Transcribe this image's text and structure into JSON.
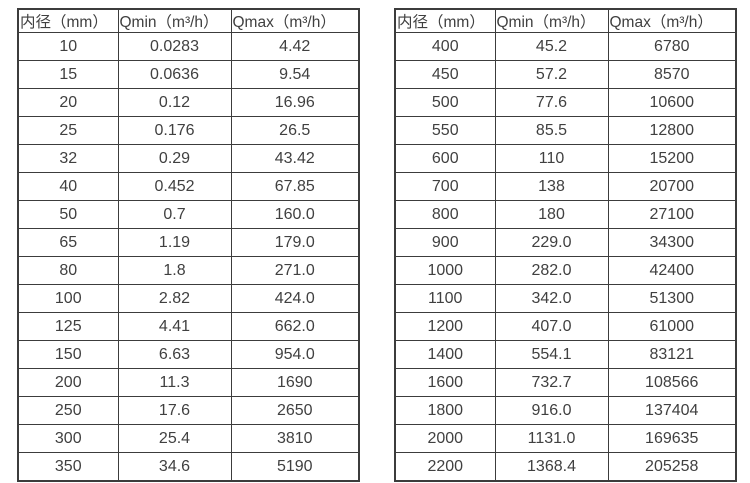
{
  "colors": {
    "border": "#3c3c3c",
    "text": "#404040",
    "background": "#ffffff"
  },
  "tables": [
    {
      "name": "flow-table-small-diameters",
      "headers": [
        "内径（mm）",
        "Qmin（m³/h）",
        "Qmax（m³/h）"
      ],
      "rows": [
        [
          "10",
          "0.0283",
          "4.42"
        ],
        [
          "15",
          "0.0636",
          "9.54"
        ],
        [
          "20",
          "0.12",
          "16.96"
        ],
        [
          "25",
          "0.176",
          "26.5"
        ],
        [
          "32",
          "0.29",
          "43.42"
        ],
        [
          "40",
          "0.452",
          "67.85"
        ],
        [
          "50",
          "0.7",
          "160.0"
        ],
        [
          "65",
          "1.19",
          "179.0"
        ],
        [
          "80",
          "1.8",
          "271.0"
        ],
        [
          "100",
          "2.82",
          "424.0"
        ],
        [
          "125",
          "4.41",
          "662.0"
        ],
        [
          "150",
          "6.63",
          "954.0"
        ],
        [
          "200",
          "11.3",
          "1690"
        ],
        [
          "250",
          "17.6",
          "2650"
        ],
        [
          "300",
          "25.4",
          "3810"
        ],
        [
          "350",
          "34.6",
          "5190"
        ]
      ]
    },
    {
      "name": "flow-table-large-diameters",
      "headers": [
        "内径（mm）",
        "Qmin（m³/h）",
        "Qmax（m³/h）"
      ],
      "rows": [
        [
          "400",
          "45.2",
          "6780"
        ],
        [
          "450",
          "57.2",
          "8570"
        ],
        [
          "500",
          "77.6",
          "10600"
        ],
        [
          "550",
          "85.5",
          "12800"
        ],
        [
          "600",
          "110",
          "15200"
        ],
        [
          "700",
          "138",
          "20700"
        ],
        [
          "800",
          "180",
          "27100"
        ],
        [
          "900",
          "229.0",
          "34300"
        ],
        [
          "1000",
          "282.0",
          "42400"
        ],
        [
          "1100",
          "342.0",
          "51300"
        ],
        [
          "1200",
          "407.0",
          "61000"
        ],
        [
          "1400",
          "554.1",
          "83121"
        ],
        [
          "1600",
          "732.7",
          "108566"
        ],
        [
          "1800",
          "916.0",
          "137404"
        ],
        [
          "2000",
          "1131.0",
          "169635"
        ],
        [
          "2200",
          "1368.4",
          "205258"
        ]
      ]
    }
  ]
}
